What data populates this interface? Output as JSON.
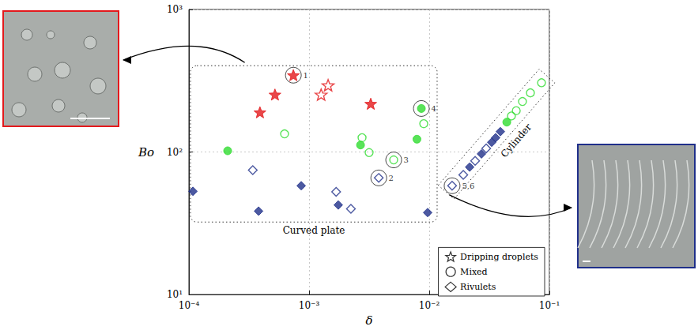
{
  "chart_data": {
    "type": "scatter",
    "log": true,
    "xlabel": "δ",
    "ylabel": "Bo",
    "xlim": [
      0.0001,
      0.1
    ],
    "ylim": [
      10,
      1000
    ],
    "xticks": [
      {
        "value": 0.0001,
        "label": "10⁻⁴"
      },
      {
        "value": 0.001,
        "label": "10⁻³"
      },
      {
        "value": 0.01,
        "label": "10⁻²"
      },
      {
        "value": 0.1,
        "label": "10⁻¹"
      }
    ],
    "yticks": [
      {
        "value": 10,
        "label": "10¹"
      },
      {
        "value": 100,
        "label": "10²"
      },
      {
        "value": 1000,
        "label": "10³"
      }
    ],
    "grid": true,
    "legend": "lower right",
    "series": [
      {
        "name": "Dripping droplets",
        "group": "Curved plate",
        "marker": "star",
        "color": "#e3191c",
        "values": [
          [
            0.00074,
            346
          ],
          [
            0.00052,
            253
          ],
          [
            0.00039,
            190
          ],
          [
            0.00326,
            218
          ]
        ]
      },
      {
        "name": "Dripping droplets",
        "group": "Curved plate",
        "marker": "star-open",
        "color": "#e3191c",
        "values": [
          [
            0.00126,
            253
          ],
          [
            0.00144,
            294
          ]
        ]
      },
      {
        "name": "Mixed",
        "group": "Curved plate",
        "marker": "circle",
        "color": "#2fdc2f",
        "values": [
          [
            0.00021,
            102
          ],
          [
            0.00268,
            112
          ],
          [
            0.0079,
            123
          ],
          [
            0.0086,
            202
          ]
        ]
      },
      {
        "name": "Mixed",
        "group": "Curved plate",
        "marker": "circle-open",
        "color": "#2fdc2f",
        "values": [
          [
            0.000625,
            134
          ],
          [
            0.00276,
            126
          ],
          [
            0.00316,
            99
          ],
          [
            0.009,
            158
          ],
          [
            0.00506,
            88
          ]
        ]
      },
      {
        "name": "Rivulets",
        "group": "Curved plate",
        "marker": "diamond",
        "color": "#1f2f8a",
        "values": [
          [
            0.000108,
            53
          ],
          [
            0.00038,
            38.5
          ],
          [
            0.00086,
            58
          ],
          [
            0.00175,
            42.5
          ],
          [
            0.0097,
            37.6
          ]
        ]
      },
      {
        "name": "Rivulets",
        "group": "Curved plate",
        "marker": "diamond-open",
        "color": "#1f2f8a",
        "values": [
          [
            0.00034,
            74.6
          ],
          [
            0.00168,
            52.6
          ],
          [
            0.00223,
            40
          ],
          [
            0.0038,
            65.8
          ]
        ]
      },
      {
        "name": "Rivulets",
        "group": "Cylinder",
        "marker": "diamond-open",
        "color": "#1f2f8a",
        "values": [
          [
            0.0155,
            58
          ],
          [
            0.0192,
            69.2
          ],
          [
            0.0241,
            86.7
          ],
          [
            0.0298,
            106
          ]
        ]
      },
      {
        "name": "Rivulets",
        "group": "Cylinder",
        "marker": "diamond",
        "color": "#1f2f8a",
        "values": [
          [
            0.0217,
            78.4
          ],
          [
            0.0272,
            97
          ],
          [
            0.0331,
            117
          ],
          [
            0.0357,
            126
          ],
          [
            0.0391,
            139
          ]
        ]
      },
      {
        "name": "Mixed",
        "group": "Cylinder",
        "marker": "circle",
        "color": "#2fdc2f",
        "values": [
          [
            0.0442,
            162
          ]
        ]
      },
      {
        "name": "Mixed",
        "group": "Cylinder",
        "marker": "circle-open",
        "color": "#2fdc2f",
        "values": [
          [
            0.0483,
            179
          ],
          [
            0.053,
            195
          ],
          [
            0.0597,
            226
          ],
          [
            0.0695,
            260
          ],
          [
            0.086,
            306
          ]
        ]
      }
    ],
    "annotations": [
      {
        "text": "1",
        "x": 0.00074,
        "y": 346
      },
      {
        "text": "2",
        "x": 0.0038,
        "y": 65.8
      },
      {
        "text": "3",
        "x": 0.00506,
        "y": 88
      },
      {
        "text": "4",
        "x": 0.0086,
        "y": 202
      },
      {
        "text": "5,6",
        "x": 0.0155,
        "y": 58
      }
    ]
  }
}
